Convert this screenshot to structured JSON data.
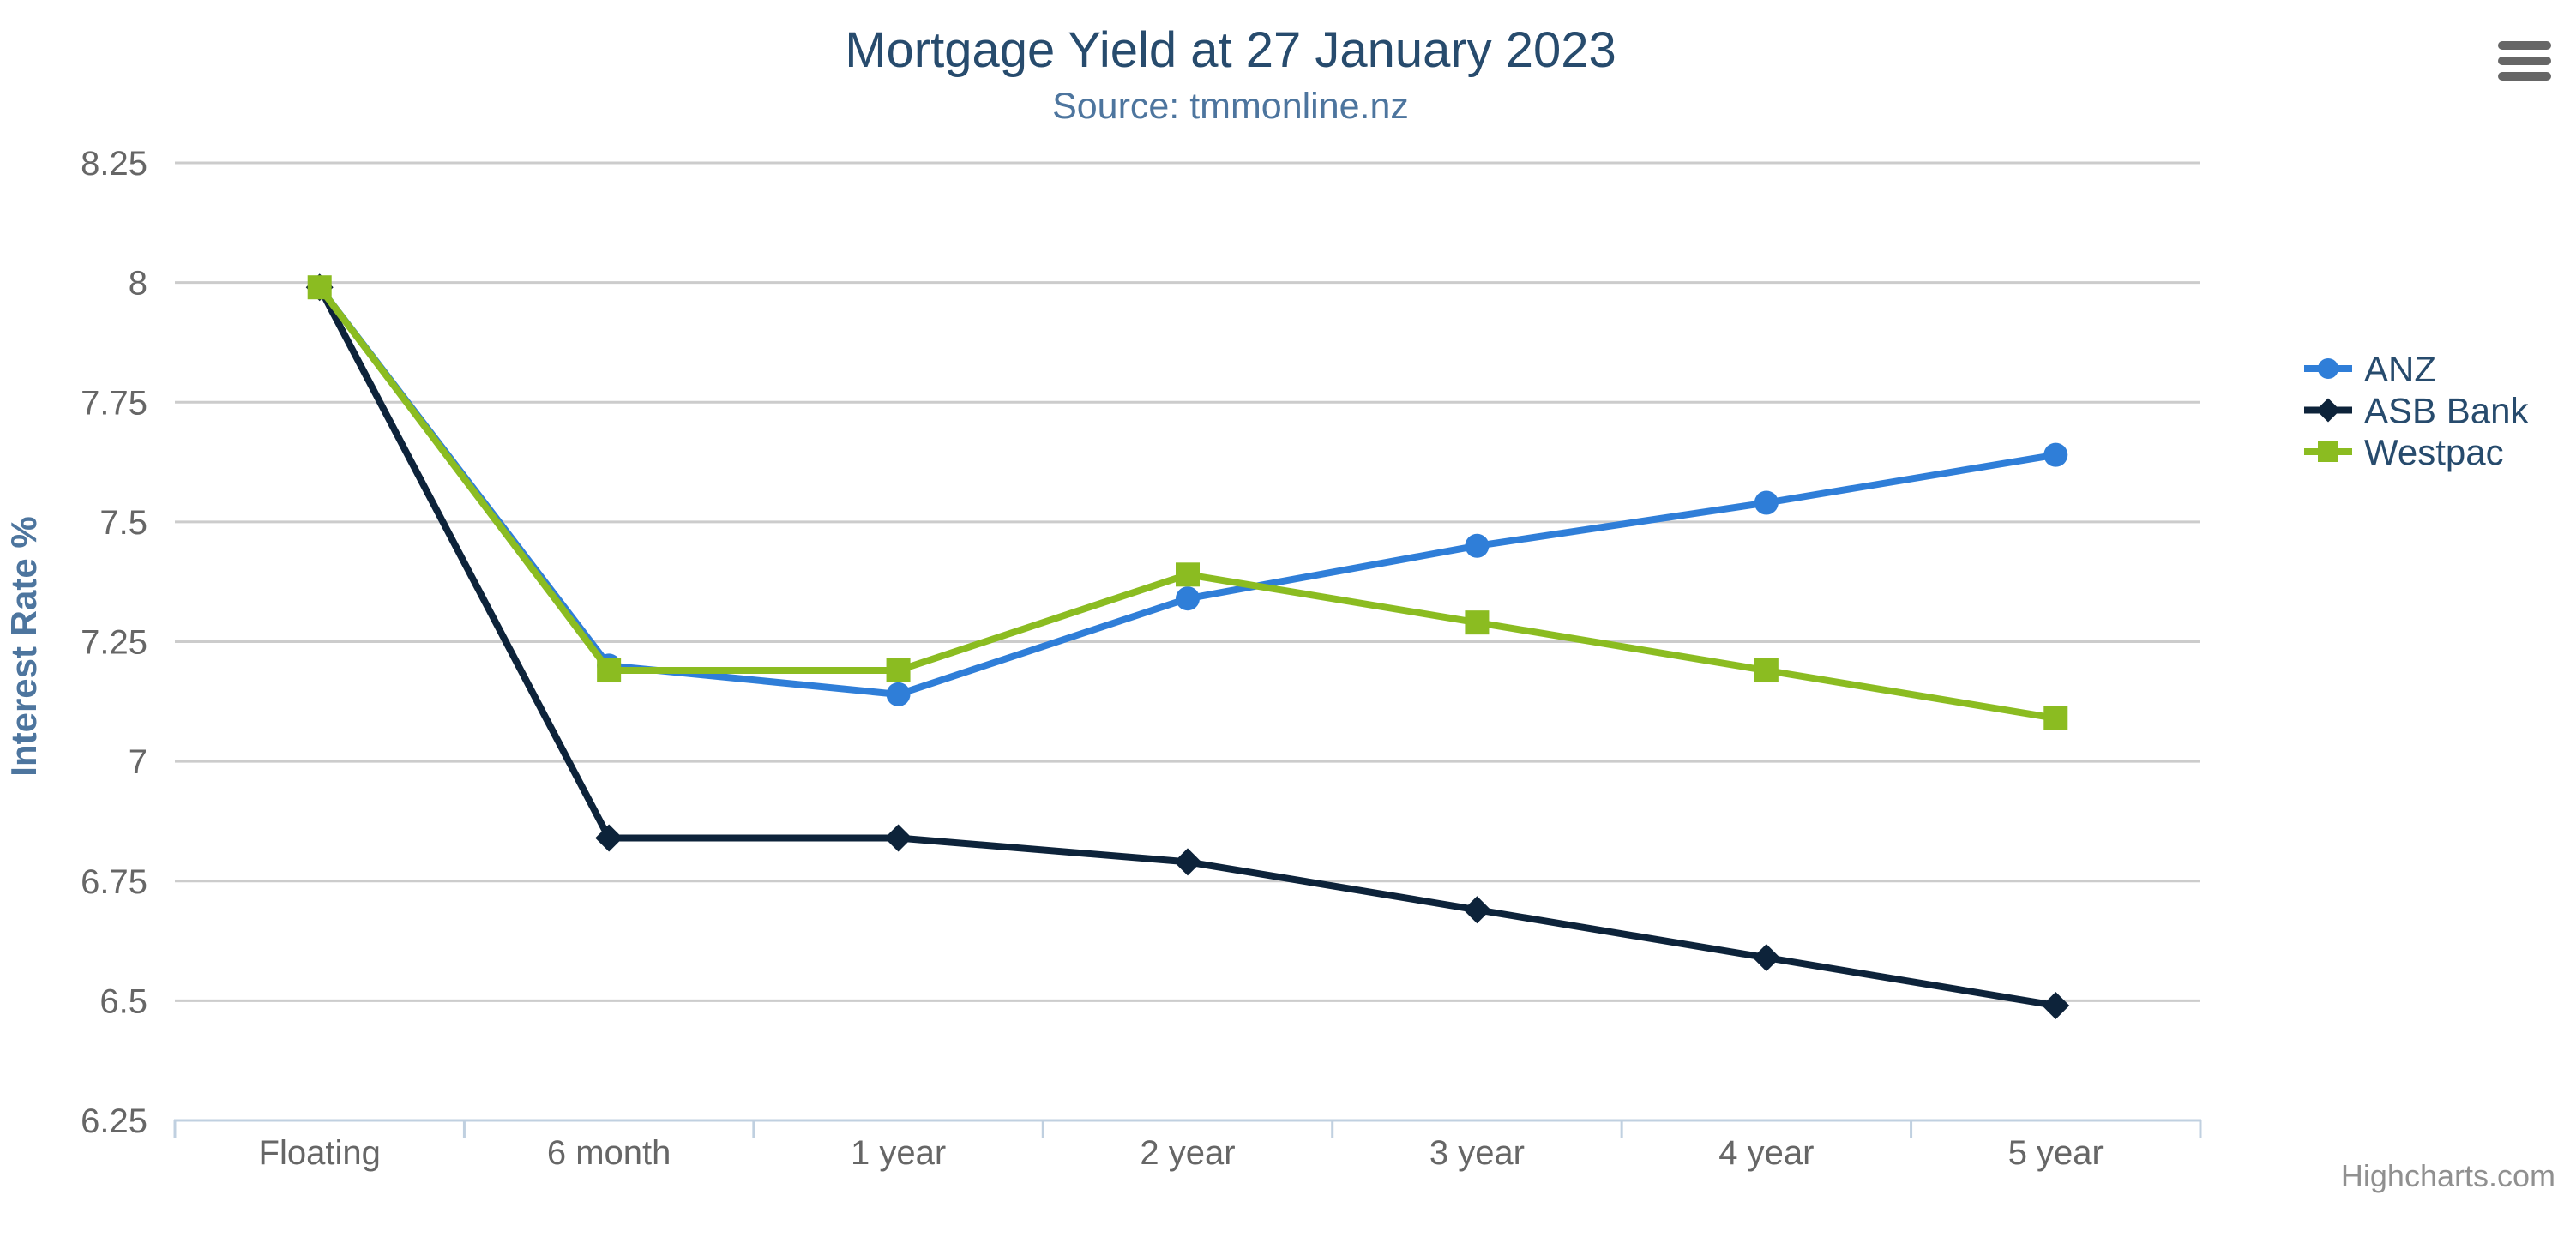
{
  "chart": {
    "title": "Mortgage Yield at 27 January 2023",
    "subtitle": "Source: tmmonline.nz",
    "credits": "Highcharts.com",
    "menu_icon": "hamburger-icon",
    "background_color": "#ffffff",
    "title_color": "#274b6d",
    "subtitle_color": "#4d759e",
    "axis_label_color": "#666666",
    "axis_line_color": "#C0D0E0",
    "grid_line_color": "#cccccc",
    "legend_text_color": "#274b6d",
    "credits_color": "#909090",
    "menu_icon_color": "#666666"
  },
  "chart_data": {
    "type": "line",
    "categories": [
      "Floating",
      "6 month",
      "1 year",
      "2 year",
      "3 year",
      "4 year",
      "5 year"
    ],
    "series": [
      {
        "name": "ANZ",
        "color": "#2f7ed8",
        "marker": "circle",
        "values": [
          7.99,
          7.2,
          7.14,
          7.34,
          7.45,
          7.54,
          7.64
        ]
      },
      {
        "name": "ASB Bank",
        "color": "#0d233a",
        "marker": "diamond",
        "values": [
          7.99,
          6.84,
          6.84,
          6.79,
          6.69,
          6.59,
          6.49
        ]
      },
      {
        "name": "Westpac",
        "color": "#8bbc21",
        "marker": "square",
        "values": [
          7.99,
          7.19,
          7.19,
          7.39,
          7.29,
          7.19,
          7.09
        ]
      }
    ],
    "title": "Mortgage Yield at 27 January 2023",
    "subtitle": "Source: tmmonline.nz",
    "xlabel": "",
    "ylabel": "Interest Rate %",
    "ylim": [
      6.25,
      8.25
    ],
    "tick_interval": 0.25,
    "y_tick_labels": [
      "6.25",
      "6.5",
      "6.75",
      "7",
      "7.25",
      "7.5",
      "7.75",
      "8",
      "8.25"
    ],
    "grid": true,
    "legend_position": "right",
    "legend_layout": "vertical"
  }
}
